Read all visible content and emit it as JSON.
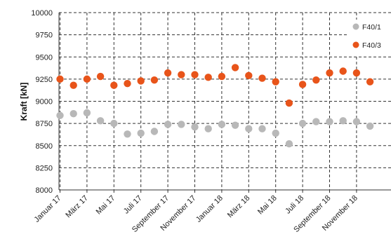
{
  "chart_data": {
    "type": "scatter",
    "ylabel": "Kraft [kN]",
    "ylim": [
      8000,
      10000
    ],
    "yticks": [
      8000,
      8250,
      8500,
      8750,
      9000,
      9250,
      9500,
      9750,
      10000
    ],
    "ytick_labels": [
      "8000",
      "8250",
      "8500",
      "8750",
      "9000",
      "9250",
      "9500",
      "9750",
      "10000"
    ],
    "x_month_range": [
      0,
      24
    ],
    "xticks": [
      0,
      2,
      4,
      6,
      8,
      10,
      12,
      14,
      16,
      18,
      20,
      22
    ],
    "xtick_labels": [
      "Januar 17",
      "März 17",
      "Mai 17",
      "Juli 17",
      "September 17",
      "November 17",
      "Januar 18",
      "März 18",
      "Mai 18",
      "Juli 18",
      "September 18",
      "November 18"
    ],
    "grid": true,
    "legend_position": "top-right",
    "series": [
      {
        "name": "F40/1",
        "color": "#b8b8b8",
        "x": [
          0,
          1,
          2,
          3,
          4,
          5,
          6,
          7,
          8,
          9,
          10,
          11,
          12,
          13,
          14,
          15,
          16,
          17,
          18,
          19,
          20,
          21,
          22,
          23
        ],
        "y": [
          8840,
          8860,
          8870,
          8780,
          8750,
          8630,
          8640,
          8660,
          8740,
          8740,
          8710,
          8690,
          8740,
          8730,
          8690,
          8690,
          8640,
          8520,
          8750,
          8770,
          8770,
          8780,
          8770,
          8720
        ]
      },
      {
        "name": "F40/3",
        "color": "#e8541a",
        "x": [
          0,
          1,
          2,
          3,
          4,
          5,
          6,
          7,
          8,
          9,
          10,
          11,
          12,
          13,
          14,
          15,
          16,
          17,
          18,
          19,
          20,
          21,
          22,
          23
        ],
        "y": [
          9250,
          9180,
          9250,
          9280,
          9180,
          9200,
          9230,
          9240,
          9320,
          9300,
          9300,
          9270,
          9280,
          9380,
          9290,
          9260,
          9220,
          8980,
          9190,
          9240,
          9320,
          9340,
          9320,
          9220
        ]
      }
    ]
  }
}
